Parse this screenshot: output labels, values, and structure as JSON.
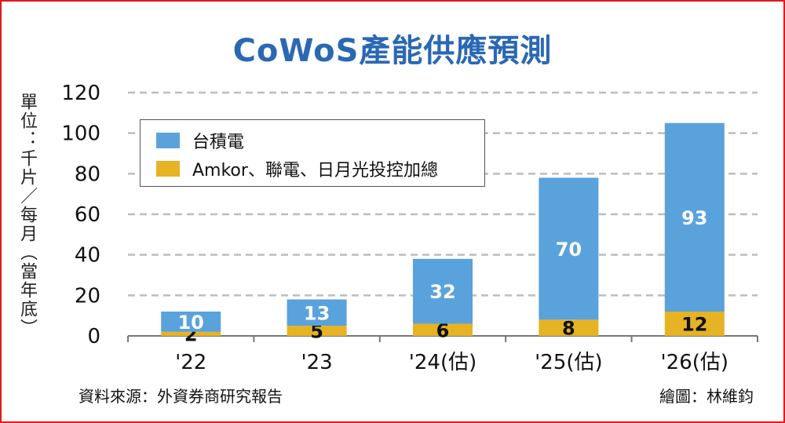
{
  "chart_data": {
    "type": "bar",
    "stacked": true,
    "title": "CoWoS產能供應預測",
    "ylabel": "單位：千片／每月（當年底）",
    "xlabel": "",
    "categories": [
      "'22",
      "'23",
      "'24(估)",
      "'25(估)",
      "'26(估)"
    ],
    "series": [
      {
        "name": "Amkor、聯電、日月光投控加總",
        "values": [
          2,
          5,
          6,
          8,
          12
        ],
        "color": "#e6b324",
        "label_color": "#111111"
      },
      {
        "name": "台積電",
        "values": [
          10,
          13,
          32,
          70,
          93
        ],
        "color": "#5aa2dc",
        "label_color": "#ffffff"
      }
    ],
    "ylim": [
      0,
      120
    ],
    "yticks": [
      "0",
      "20",
      "40",
      "60",
      "80",
      "100",
      "120"
    ],
    "grid": true,
    "legend_position": "top-left"
  },
  "footer": {
    "source": "資料來源：外資券商研究報告",
    "credit": "繪圖：林維鈞"
  }
}
